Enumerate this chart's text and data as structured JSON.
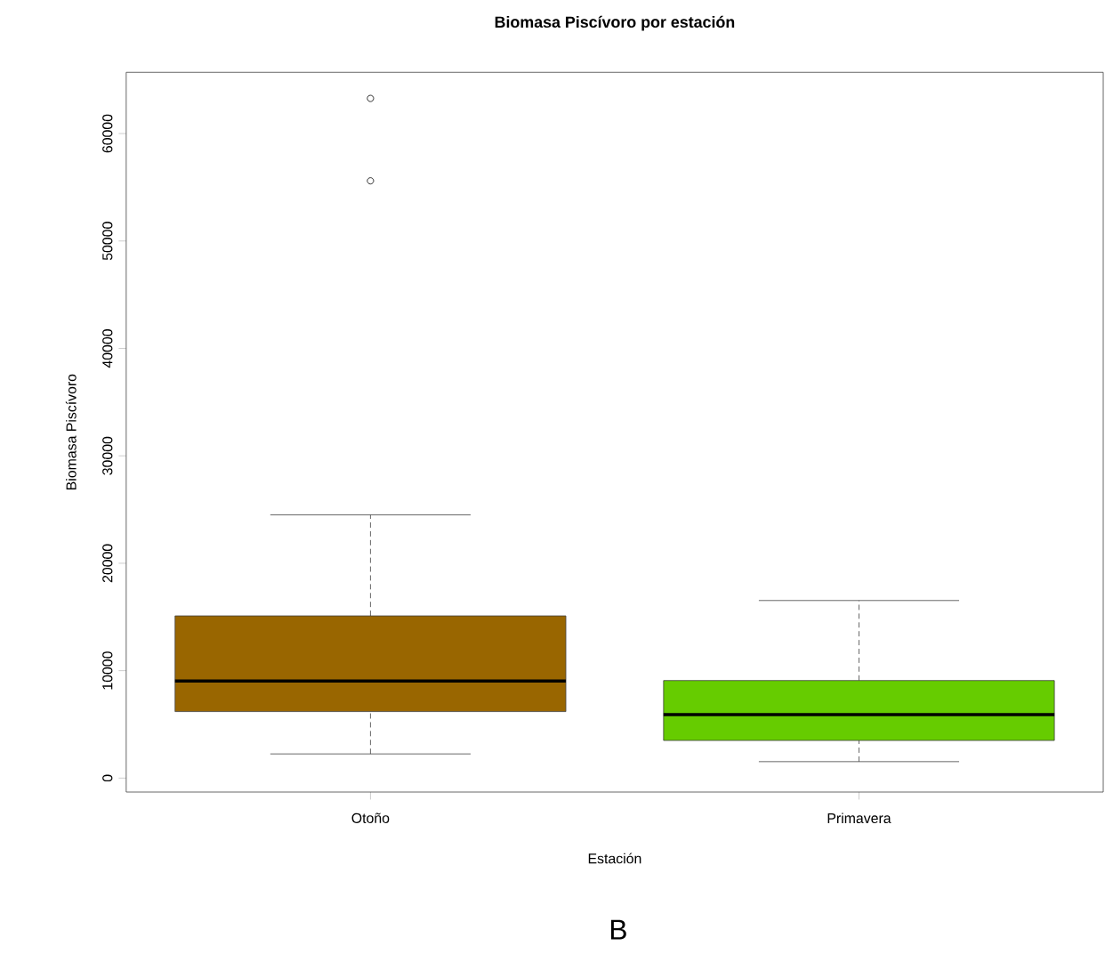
{
  "chart_data": {
    "type": "box",
    "title": "Biomasa Piscívoro por estación",
    "xlabel": "Estación",
    "ylabel": "Biomasa Piscívoro",
    "categories": [
      "Otoño",
      "Primavera"
    ],
    "colors": [
      "#996600",
      "#66cc00"
    ],
    "boxes": [
      {
        "low": 2250,
        "q1": 6190,
        "median": 9030,
        "q3": 15100,
        "high": 24500,
        "outliers": [
          63270,
          55600
        ]
      },
      {
        "low": 1530,
        "q1": 3500,
        "median": 5910,
        "q3": 9080,
        "high": 16530
      }
    ],
    "ylim": [
      -1300,
      65700
    ],
    "yticks": [
      0,
      10000,
      20000,
      30000,
      40000,
      50000,
      60000
    ],
    "annotations": [
      "B"
    ]
  }
}
